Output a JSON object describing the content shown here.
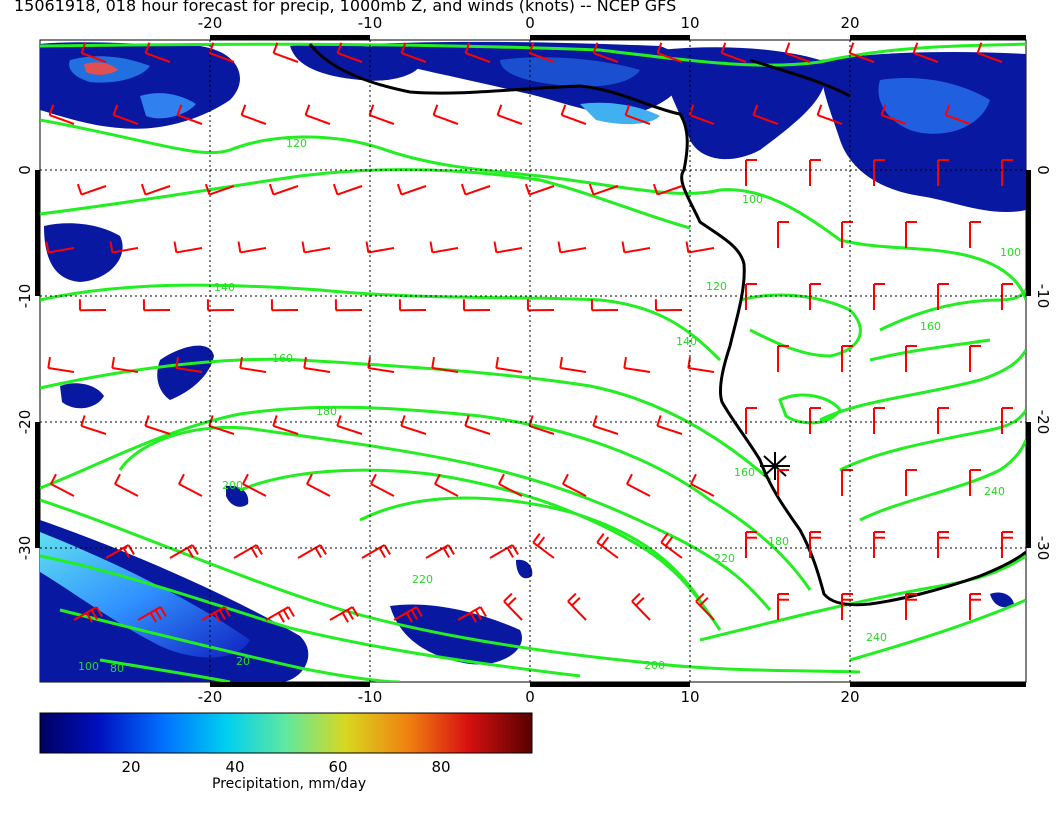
{
  "title": "15061918, 018 hour forecast for precip, 1000mb Z, and winds (knots) -- NCEP GFS",
  "axes": {
    "x_ticks": [
      "-20",
      "-10",
      "0",
      "10",
      "20"
    ],
    "y_ticks": [
      "0",
      "-10",
      "-20",
      "-30"
    ]
  },
  "contour_labels": [
    "120",
    "100",
    "140",
    "160",
    "180",
    "200",
    "220",
    "240",
    "100",
    "200",
    "220",
    "240",
    "180",
    "160",
    "140",
    "120",
    "100",
    "160",
    "20",
    "80"
  ],
  "colorbar": {
    "ticks": [
      "20",
      "40",
      "60",
      "80"
    ],
    "label": "Precipitation, mm/day"
  },
  "colors": {
    "contour": "#22ee22",
    "wind_barb": "#ff0000",
    "coast": "#000000",
    "precip_low": "#000080",
    "precip_high": "#600000"
  }
}
